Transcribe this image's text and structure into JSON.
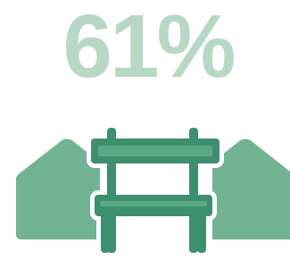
{
  "stat": {
    "text": "61%"
  }
}
